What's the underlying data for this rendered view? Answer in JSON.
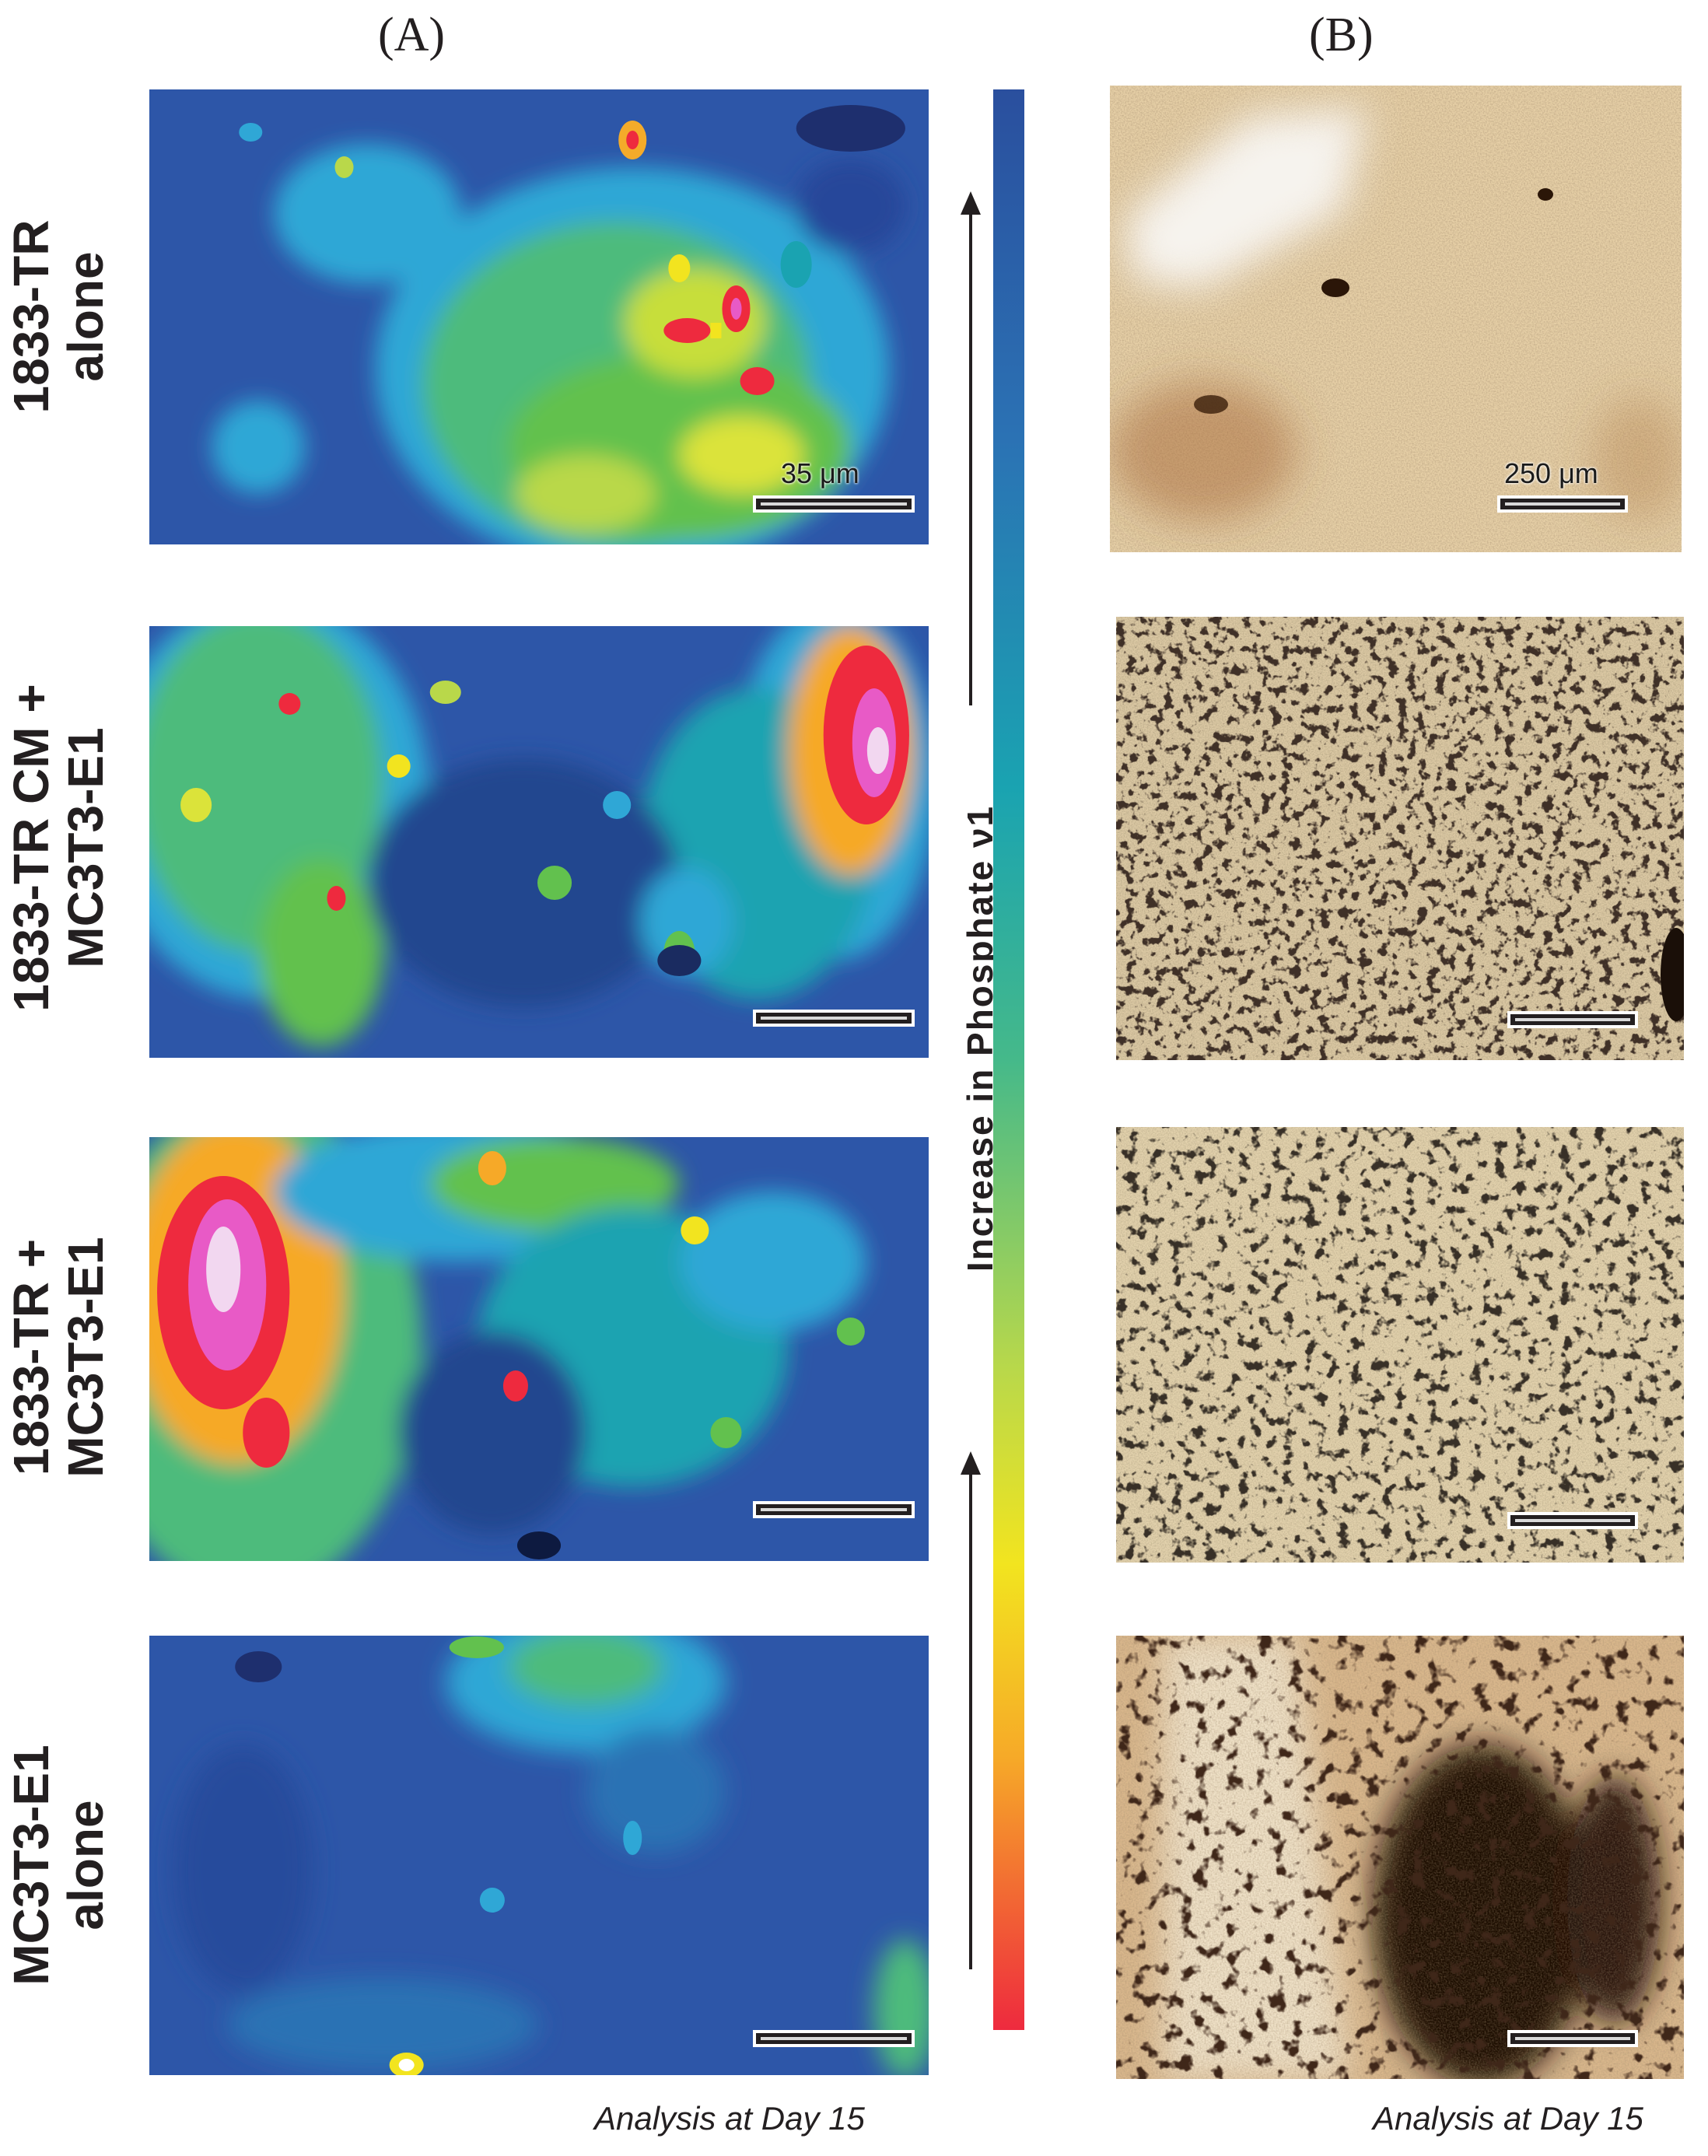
{
  "panels": {
    "a_label": "(A)",
    "b_label": "(B)"
  },
  "rows": [
    {
      "line1": "1833-TR",
      "line2": "alone"
    },
    {
      "line1": "1833-TR CM +",
      "line2": "MC3T3-E1"
    },
    {
      "line1": "1833-TR +",
      "line2": "MC3T3-E1"
    },
    {
      "line1": "MC3T3-E1",
      "line2": "alone"
    }
  ],
  "scalebars": {
    "raman": "35 μm",
    "micrograph": "250 μm"
  },
  "colorbar": {
    "label": "Increase in Phosphate ν1",
    "colors": [
      "#2a4f9e",
      "#1aa3b1",
      "#45b98a",
      "#b9d84a",
      "#f2e41f",
      "#f6a928",
      "#ee2a3e"
    ]
  },
  "captions": {
    "left": "Analysis at Day 15",
    "right": "Analysis at Day 15"
  }
}
